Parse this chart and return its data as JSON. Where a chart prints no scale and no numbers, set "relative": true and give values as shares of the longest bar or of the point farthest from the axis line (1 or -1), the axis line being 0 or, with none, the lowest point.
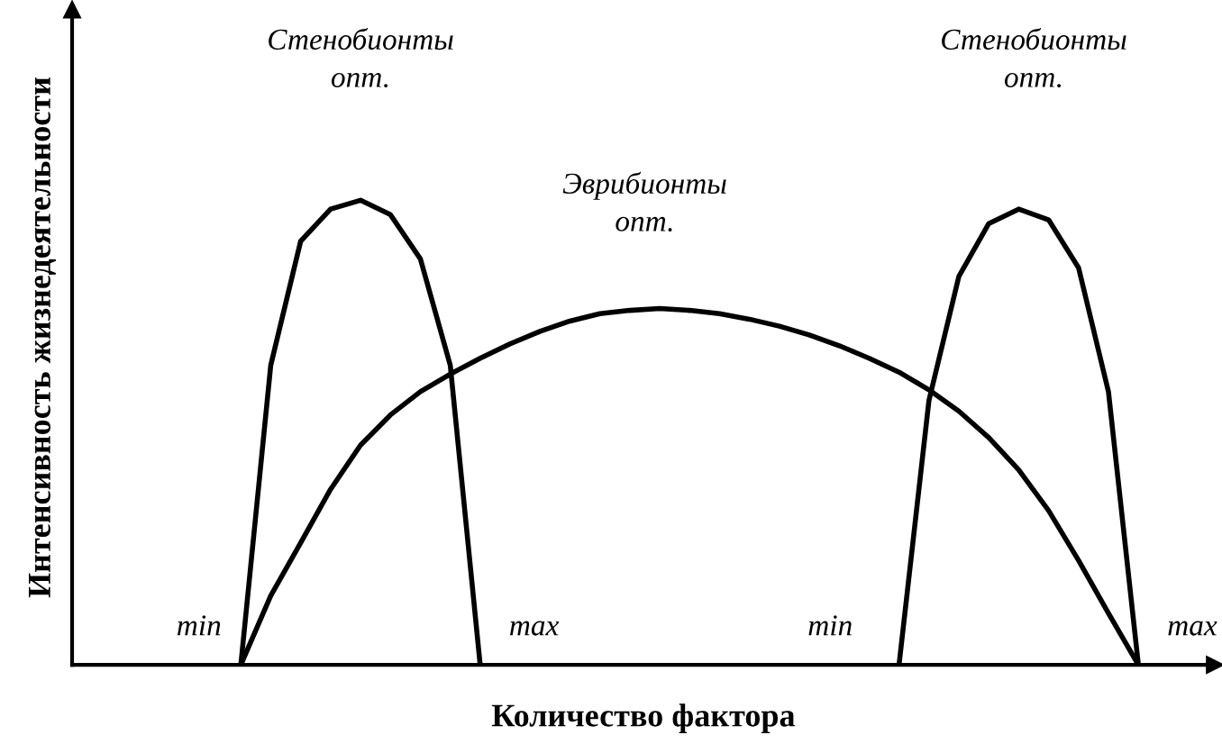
{
  "chart_data": {
    "type": "line",
    "relative": true,
    "xlabel": "Количество фактора",
    "ylabel": "Интенсивность жизнедеятельности",
    "categories": [
      null,
      null,
      null,
      null,
      null,
      null,
      null,
      null,
      null,
      null,
      null,
      null,
      null,
      null,
      null,
      null,
      null,
      null,
      null,
      null,
      null,
      null,
      null,
      null,
      null,
      null,
      null,
      null,
      null,
      null,
      null,
      null,
      null,
      null,
      null,
      null,
      null,
      null,
      null,
      null
    ],
    "series": [
      {
        "color": "#000000",
        "values": [
          null,
          null,
          null,
          null,
          null,
          null,
          0,
          0.645,
          0.912,
          0.981,
          1,
          0.969,
          0.874,
          0.645,
          0,
          null,
          null,
          null,
          null,
          null,
          null,
          null,
          null,
          null,
          null,
          null,
          null,
          null,
          null,
          null,
          null,
          null,
          null,
          null,
          null,
          null,
          null,
          null,
          null,
          null
        ]
      },
      {
        "color": "#000000",
        "values": [
          null,
          null,
          null,
          null,
          null,
          null,
          0,
          0.149,
          0.263,
          0.378,
          0.473,
          0.538,
          0.588,
          0.626,
          0.66,
          0.691,
          0.718,
          0.74,
          0.756,
          0.763,
          0.767,
          0.763,
          0.756,
          0.744,
          0.729,
          0.71,
          0.687,
          0.66,
          0.63,
          0.592,
          0.546,
          0.489,
          0.42,
          0.332,
          0.225,
          0.111,
          0,
          null,
          null,
          null
        ]
      },
      {
        "color": "#000000",
        "values": [
          null,
          null,
          null,
          null,
          null,
          null,
          null,
          null,
          null,
          null,
          null,
          null,
          null,
          null,
          null,
          null,
          null,
          null,
          null,
          null,
          null,
          null,
          null,
          null,
          null,
          null,
          null,
          null,
          0,
          0.569,
          0.836,
          0.95,
          0.981,
          0.958,
          0.855,
          0.588,
          0,
          null,
          null,
          null
        ]
      }
    ],
    "annotations": [
      "Стенобионты\nопт.",
      "Эврибионты\nопт.",
      "Стенобионты\nопт.",
      "min",
      "max",
      "min",
      "max"
    ],
    "grid": false,
    "legend": false,
    "line_style": "solid",
    "marker": "none"
  }
}
